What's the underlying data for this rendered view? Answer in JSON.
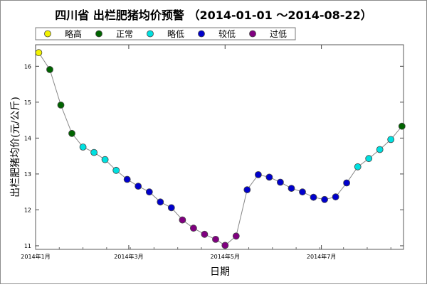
{
  "chart_data": {
    "type": "scatter",
    "title": "四川省 出栏肥猪均价预警 （2014-01-01 ～2014-08-22）",
    "xlabel": "日期",
    "ylabel": "出栏肥猪均价(元/公斤)",
    "ylim": [
      10.9,
      16.6
    ],
    "xlim": [
      "2014-01-01",
      "2014-08-22"
    ],
    "yticks": [
      11,
      12,
      13,
      14,
      15,
      16
    ],
    "xticks": [
      {
        "date": "2014-01-01",
        "label": "2014年1月"
      },
      {
        "date": "2014-03-01",
        "label": "2014年3月"
      },
      {
        "date": "2014-05-01",
        "label": "2014年5月"
      },
      {
        "date": "2014-07-01",
        "label": "2014年7月"
      }
    ],
    "grid": false,
    "legend_position": "top",
    "legend": [
      {
        "label": "略高",
        "color": "#f2f200"
      },
      {
        "label": "正常",
        "color": "#006400"
      },
      {
        "label": "略低",
        "color": "#00e0e0"
      },
      {
        "label": "较低",
        "color": "#0000cc"
      },
      {
        "label": "过低",
        "color": "#800080"
      }
    ],
    "line_color": "#888888",
    "points": [
      {
        "x": "2014-01-03",
        "y": 16.38,
        "level": "略高"
      },
      {
        "x": "2014-01-10",
        "y": 15.91,
        "level": "正常"
      },
      {
        "x": "2014-01-17",
        "y": 14.92,
        "level": "正常"
      },
      {
        "x": "2014-01-24",
        "y": 14.13,
        "level": "正常"
      },
      {
        "x": "2014-01-31",
        "y": 13.75,
        "level": "略低"
      },
      {
        "x": "2014-02-07",
        "y": 13.6,
        "level": "略低"
      },
      {
        "x": "2014-02-14",
        "y": 13.4,
        "level": "略低"
      },
      {
        "x": "2014-02-21",
        "y": 13.1,
        "level": "略低"
      },
      {
        "x": "2014-02-28",
        "y": 12.85,
        "level": "较低"
      },
      {
        "x": "2014-03-07",
        "y": 12.66,
        "level": "较低"
      },
      {
        "x": "2014-03-14",
        "y": 12.5,
        "level": "较低"
      },
      {
        "x": "2014-03-21",
        "y": 12.22,
        "level": "较低"
      },
      {
        "x": "2014-03-28",
        "y": 12.06,
        "level": "较低"
      },
      {
        "x": "2014-04-04",
        "y": 11.72,
        "level": "过低"
      },
      {
        "x": "2014-04-11",
        "y": 11.49,
        "level": "过低"
      },
      {
        "x": "2014-04-18",
        "y": 11.32,
        "level": "过低"
      },
      {
        "x": "2014-04-25",
        "y": 11.18,
        "level": "过低"
      },
      {
        "x": "2014-05-01",
        "y": 11.01,
        "level": "过低"
      },
      {
        "x": "2014-05-08",
        "y": 11.27,
        "level": "过低"
      },
      {
        "x": "2014-05-15",
        "y": 12.56,
        "level": "较低"
      },
      {
        "x": "2014-05-22",
        "y": 12.98,
        "level": "较低"
      },
      {
        "x": "2014-05-29",
        "y": 12.91,
        "level": "较低"
      },
      {
        "x": "2014-06-05",
        "y": 12.77,
        "level": "较低"
      },
      {
        "x": "2014-06-12",
        "y": 12.6,
        "level": "较低"
      },
      {
        "x": "2014-06-19",
        "y": 12.5,
        "level": "较低"
      },
      {
        "x": "2014-06-26",
        "y": 12.35,
        "level": "较低"
      },
      {
        "x": "2014-07-03",
        "y": 12.29,
        "level": "较低"
      },
      {
        "x": "2014-07-10",
        "y": 12.36,
        "level": "较低"
      },
      {
        "x": "2014-07-17",
        "y": 12.75,
        "level": "较低"
      },
      {
        "x": "2014-07-24",
        "y": 13.2,
        "level": "略低"
      },
      {
        "x": "2014-07-31",
        "y": 13.43,
        "level": "略低"
      },
      {
        "x": "2014-08-07",
        "y": 13.68,
        "level": "略低"
      },
      {
        "x": "2014-08-14",
        "y": 13.96,
        "level": "略低"
      },
      {
        "x": "2014-08-21",
        "y": 14.33,
        "level": "正常"
      }
    ]
  }
}
